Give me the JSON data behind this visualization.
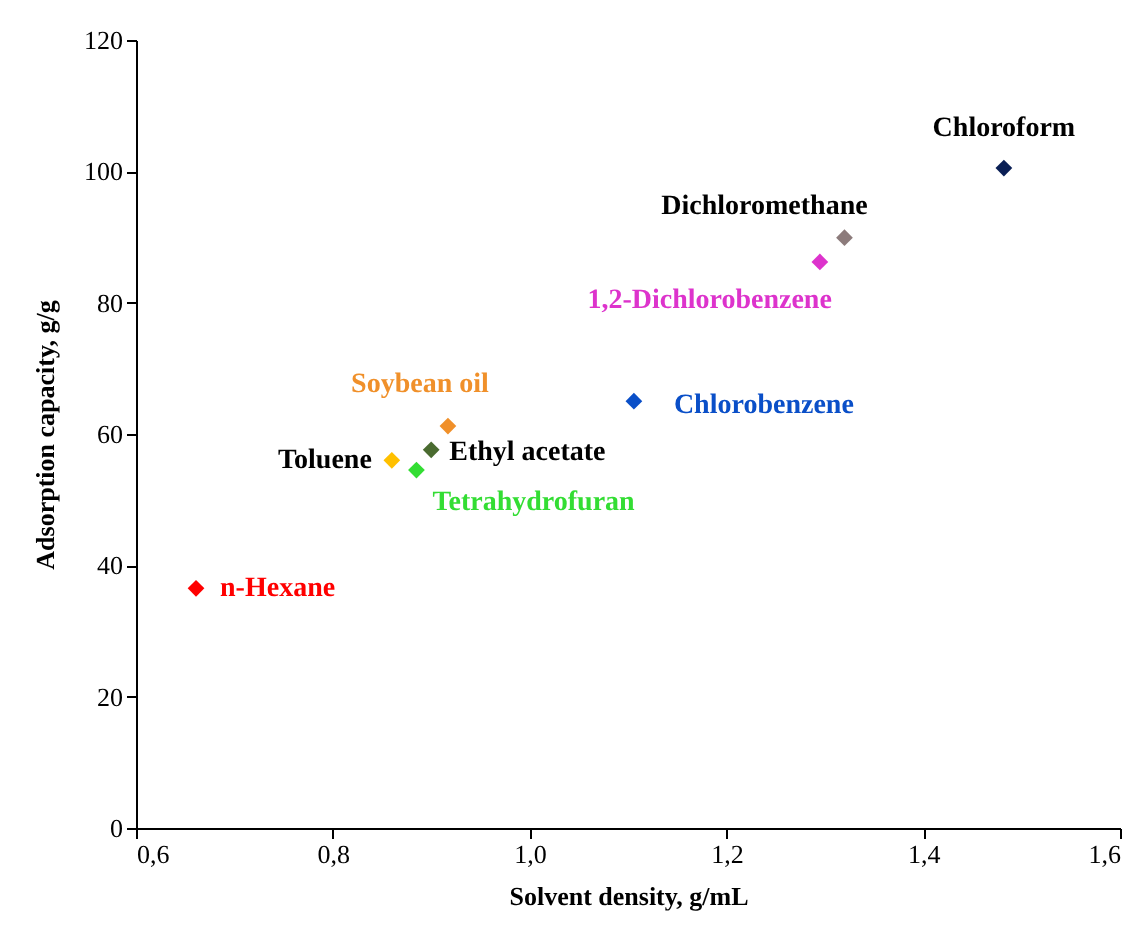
{
  "chart_data": {
    "type": "scatter",
    "xlabel": "Solvent density, g/mL",
    "ylabel": "Adsorption capacity, g/g",
    "xlim": [
      0.6,
      1.6
    ],
    "xticks": [
      {
        "value": 0.6,
        "label": "0,6"
      },
      {
        "value": 0.8,
        "label": "0,8"
      },
      {
        "value": 1.0,
        "label": "1,0"
      },
      {
        "value": 1.2,
        "label": "1,2"
      },
      {
        "value": 1.4,
        "label": "1,4"
      },
      {
        "value": 1.6,
        "label": "1,6"
      }
    ],
    "ylim": [
      0,
      120
    ],
    "yticks": [
      0,
      20,
      40,
      60,
      80,
      100,
      120
    ],
    "grid": false,
    "marker": "diamond",
    "series": [
      {
        "name": "n-Hexane",
        "color": "#ff0000",
        "x": [
          0.661
        ],
        "values": [
          36.5
        ]
      },
      {
        "name": "Toluene",
        "color": "#ffc000",
        "x": [
          0.86
        ],
        "values": [
          56
        ]
      },
      {
        "name": "Tetrahydrofuran",
        "color": "#33dd33",
        "x": [
          0.885
        ],
        "values": [
          54.5
        ]
      },
      {
        "name": "Ethyl acetate",
        "color": "#4a6b30",
        "x": [
          0.9
        ],
        "values": [
          57.6
        ]
      },
      {
        "name": "Soybean oil",
        "color": "#f0902a",
        "x": [
          0.917
        ],
        "values": [
          61.2
        ]
      },
      {
        "name": "Chlorobenzene",
        "color": "#0a4fc8",
        "x": [
          1.106
        ],
        "values": [
          65
        ]
      },
      {
        "name": "1,2-Dichlorobenzene",
        "color": "#dd33cc",
        "x": [
          1.295
        ],
        "values": [
          86.2
        ]
      },
      {
        "name": "Dichloromethane",
        "color": "#8c7b7b",
        "x": [
          1.32
        ],
        "values": [
          89.9
        ]
      },
      {
        "name": "Chloroform",
        "color": "#0a1f55",
        "x": [
          1.482
        ],
        "values": [
          100.5
        ]
      }
    ]
  }
}
